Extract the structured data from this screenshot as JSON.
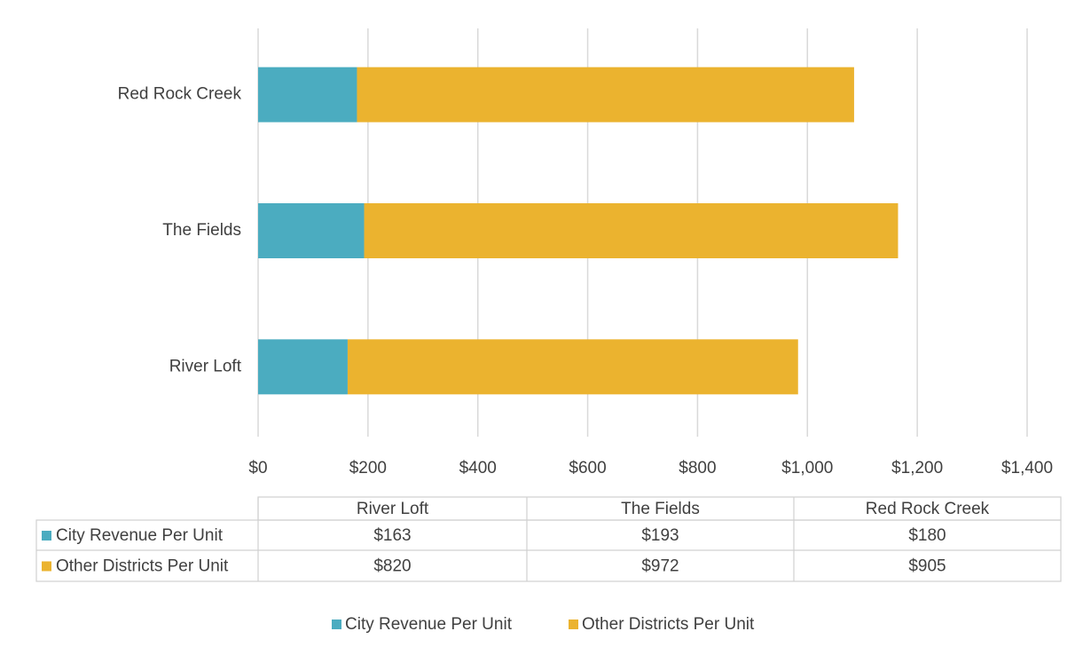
{
  "chart_data": {
    "type": "bar",
    "orientation": "horizontal",
    "stacked": true,
    "categories": [
      "River Loft",
      "The Fields",
      "Red Rock Creek"
    ],
    "series": [
      {
        "name": "City Revenue Per Unit",
        "color": "#4bacc0",
        "values": [
          163,
          193,
          180
        ],
        "value_labels": [
          "$163",
          "$193",
          "$180"
        ]
      },
      {
        "name": "Other Districts Per Unit",
        "color": "#ebb32f",
        "values": [
          820,
          972,
          905
        ],
        "value_labels": [
          "$820",
          "$972",
          "$905"
        ]
      }
    ],
    "xlim": [
      0,
      1400
    ],
    "xticks": [
      {
        "value": 0,
        "label": "$0"
      },
      {
        "value": 200,
        "label": "$200"
      },
      {
        "value": 400,
        "label": "$400"
      },
      {
        "value": 600,
        "label": "$600"
      },
      {
        "value": 800,
        "label": "$800"
      },
      {
        "value": 1000,
        "label": "$1,000"
      },
      {
        "value": 1200,
        "label": "$1,200"
      },
      {
        "value": 1400,
        "label": "$1,400"
      }
    ],
    "grid": true,
    "legend": "bottom",
    "data_table": true
  }
}
